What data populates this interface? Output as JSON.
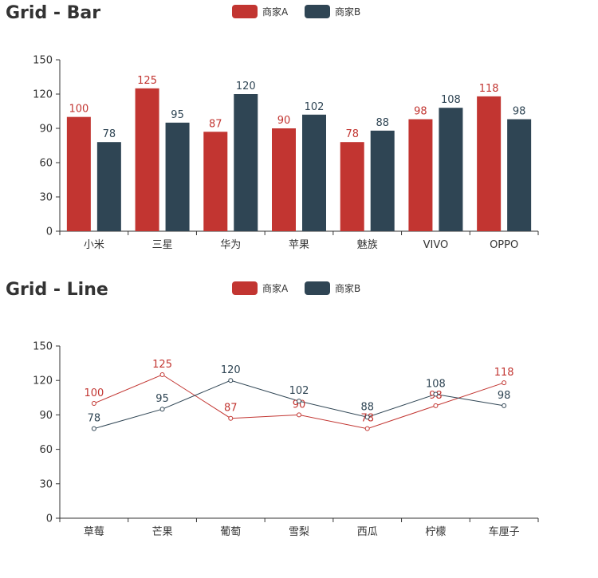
{
  "chart_data": [
    {
      "type": "bar",
      "title": "Grid - Bar",
      "categories": [
        "小米",
        "三星",
        "华为",
        "苹果",
        "魅族",
        "VIVO",
        "OPPO"
      ],
      "series": [
        {
          "name": "商家A",
          "values": [
            100,
            125,
            87,
            90,
            78,
            98,
            118
          ],
          "color": "#c23531"
        },
        {
          "name": "商家B",
          "values": [
            78,
            95,
            120,
            102,
            88,
            108,
            98
          ],
          "color": "#2f4554"
        }
      ],
      "yticks": [
        "0",
        "30",
        "60",
        "90",
        "120",
        "150"
      ],
      "ylim": [
        0,
        150
      ],
      "legend": "top-center",
      "grid": false,
      "data_labels": true
    },
    {
      "type": "line",
      "title": "Grid - Line",
      "categories": [
        "草莓",
        "芒果",
        "葡萄",
        "雪梨",
        "西瓜",
        "柠檬",
        "车厘子"
      ],
      "series": [
        {
          "name": "商家A",
          "values": [
            100,
            125,
            87,
            90,
            78,
            98,
            118
          ],
          "color": "#c23531"
        },
        {
          "name": "商家B",
          "values": [
            78,
            95,
            120,
            102,
            88,
            108,
            98
          ],
          "color": "#2f4554"
        }
      ],
      "yticks": [
        "0",
        "30",
        "60",
        "90",
        "120",
        "150"
      ],
      "ylim": [
        0,
        150
      ],
      "legend": "top-center",
      "grid": false,
      "data_labels": true
    }
  ]
}
